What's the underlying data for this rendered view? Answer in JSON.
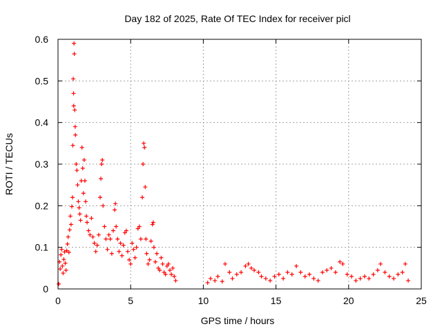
{
  "chart_data": {
    "type": "scatter",
    "title": "Day 182 of 2025, Rate Of TEC Index for receiver picl",
    "xlabel": "GPS time / hours",
    "ylabel": "ROTI / TECUs",
    "xlim": [
      0,
      25
    ],
    "ylim": [
      0,
      0.6
    ],
    "x_ticks": [
      "0",
      "5",
      "10",
      "15",
      "20",
      "25"
    ],
    "y_ticks": [
      "0",
      "0.1",
      "0.2",
      "0.3",
      "0.4",
      "0.5",
      "0.6"
    ],
    "x_tick_values": [
      0,
      5,
      10,
      15,
      20,
      25
    ],
    "y_tick_values": [
      0,
      0.1,
      0.2,
      0.3,
      0.4,
      0.5,
      0.6
    ],
    "grid": true,
    "legend": "none",
    "marker": "+",
    "series_color": "#ff0000",
    "series": [
      {
        "points": [
          [
            0.05,
            0.012
          ],
          [
            0.1,
            0.065
          ],
          [
            0.15,
            0.048
          ],
          [
            0.2,
            0.082
          ],
          [
            0.25,
            0.095
          ],
          [
            0.3,
            0.055
          ],
          [
            0.35,
            0.038
          ],
          [
            0.4,
            0.071
          ],
          [
            0.45,
            0.089
          ],
          [
            0.5,
            0.062
          ],
          [
            0.55,
            0.045
          ],
          [
            0.6,
            0.092
          ],
          [
            0.65,
            0.108
          ],
          [
            0.7,
            0.125
          ],
          [
            0.75,
            0.088
          ],
          [
            0.8,
            0.142
          ],
          [
            0.85,
            0.175
          ],
          [
            0.9,
            0.155
          ],
          [
            0.95,
            0.198
          ],
          [
            1.0,
            0.22
          ],
          [
            1.02,
            0.345
          ],
          [
            1.05,
            0.505
          ],
          [
            1.07,
            0.47
          ],
          [
            1.08,
            0.44
          ],
          [
            1.1,
            0.59
          ],
          [
            1.12,
            0.565
          ],
          [
            1.15,
            0.43
          ],
          [
            1.18,
            0.39
          ],
          [
            1.2,
            0.37
          ],
          [
            1.25,
            0.3
          ],
          [
            1.3,
            0.285
          ],
          [
            1.35,
            0.25
          ],
          [
            1.4,
            0.21
          ],
          [
            1.45,
            0.195
          ],
          [
            1.5,
            0.18
          ],
          [
            1.55,
            0.165
          ],
          [
            1.6,
            0.26
          ],
          [
            1.65,
            0.34
          ],
          [
            1.7,
            0.29
          ],
          [
            1.75,
            0.23
          ],
          [
            1.8,
            0.31
          ],
          [
            1.85,
            0.26
          ],
          [
            1.9,
            0.21
          ],
          [
            1.95,
            0.175
          ],
          [
            2.0,
            0.16
          ],
          [
            2.1,
            0.14
          ],
          [
            2.2,
            0.13
          ],
          [
            2.3,
            0.17
          ],
          [
            2.4,
            0.125
          ],
          [
            2.5,
            0.11
          ],
          [
            2.6,
            0.09
          ],
          [
            2.7,
            0.105
          ],
          [
            2.8,
            0.13
          ],
          [
            2.9,
            0.22
          ],
          [
            2.95,
            0.265
          ],
          [
            3.0,
            0.3
          ],
          [
            3.05,
            0.31
          ],
          [
            3.1,
            0.2
          ],
          [
            3.2,
            0.15
          ],
          [
            3.3,
            0.12
          ],
          [
            3.4,
            0.095
          ],
          [
            3.5,
            0.13
          ],
          [
            3.6,
            0.12
          ],
          [
            3.7,
            0.085
          ],
          [
            3.8,
            0.14
          ],
          [
            3.9,
            0.19
          ],
          [
            3.95,
            0.205
          ],
          [
            4.0,
            0.15
          ],
          [
            4.1,
            0.12
          ],
          [
            4.2,
            0.09
          ],
          [
            4.3,
            0.11
          ],
          [
            4.4,
            0.08
          ],
          [
            4.5,
            0.105
          ],
          [
            4.6,
            0.135
          ],
          [
            4.7,
            0.14
          ],
          [
            4.8,
            0.09
          ],
          [
            4.9,
            0.07
          ],
          [
            5.0,
            0.06
          ],
          [
            5.1,
            0.11
          ],
          [
            5.2,
            0.095
          ],
          [
            5.3,
            0.075
          ],
          [
            5.4,
            0.1
          ],
          [
            5.5,
            0.145
          ],
          [
            5.6,
            0.15
          ],
          [
            5.7,
            0.12
          ],
          [
            5.8,
            0.22
          ],
          [
            5.85,
            0.3
          ],
          [
            5.9,
            0.35
          ],
          [
            5.95,
            0.34
          ],
          [
            6.0,
            0.245
          ],
          [
            6.05,
            0.12
          ],
          [
            6.1,
            0.085
          ],
          [
            6.2,
            0.06
          ],
          [
            6.3,
            0.07
          ],
          [
            6.4,
            0.115
          ],
          [
            6.5,
            0.155
          ],
          [
            6.55,
            0.16
          ],
          [
            6.6,
            0.1
          ],
          [
            6.7,
            0.065
          ],
          [
            6.8,
            0.085
          ],
          [
            6.9,
            0.05
          ],
          [
            7.0,
            0.045
          ],
          [
            7.1,
            0.075
          ],
          [
            7.2,
            0.06
          ],
          [
            7.3,
            0.04
          ],
          [
            7.4,
            0.035
          ],
          [
            7.5,
            0.055
          ],
          [
            7.6,
            0.06
          ],
          [
            7.7,
            0.045
          ],
          [
            7.8,
            0.035
          ],
          [
            7.9,
            0.05
          ],
          [
            8.0,
            0.03
          ],
          [
            8.1,
            0.02
          ],
          [
            10.3,
            0.015
          ],
          [
            10.5,
            0.025
          ],
          [
            10.8,
            0.02
          ],
          [
            11.0,
            0.03
          ],
          [
            11.3,
            0.018
          ],
          [
            11.5,
            0.06
          ],
          [
            11.8,
            0.04
          ],
          [
            12.0,
            0.025
          ],
          [
            12.3,
            0.035
          ],
          [
            12.6,
            0.04
          ],
          [
            12.9,
            0.055
          ],
          [
            13.1,
            0.06
          ],
          [
            13.3,
            0.05
          ],
          [
            13.5,
            0.045
          ],
          [
            13.8,
            0.04
          ],
          [
            14.0,
            0.03
          ],
          [
            14.3,
            0.025
          ],
          [
            14.6,
            0.02
          ],
          [
            14.9,
            0.03
          ],
          [
            15.2,
            0.035
          ],
          [
            15.5,
            0.025
          ],
          [
            15.8,
            0.04
          ],
          [
            16.1,
            0.035
          ],
          [
            16.4,
            0.055
          ],
          [
            16.7,
            0.04
          ],
          [
            17.0,
            0.03
          ],
          [
            17.3,
            0.035
          ],
          [
            17.6,
            0.025
          ],
          [
            17.9,
            0.02
          ],
          [
            18.2,
            0.04
          ],
          [
            18.5,
            0.045
          ],
          [
            18.8,
            0.05
          ],
          [
            19.1,
            0.04
          ],
          [
            19.4,
            0.065
          ],
          [
            19.6,
            0.06
          ],
          [
            19.9,
            0.035
          ],
          [
            20.2,
            0.03
          ],
          [
            20.5,
            0.02
          ],
          [
            20.8,
            0.025
          ],
          [
            21.1,
            0.03
          ],
          [
            21.4,
            0.025
          ],
          [
            21.7,
            0.035
          ],
          [
            22.0,
            0.045
          ],
          [
            22.2,
            0.06
          ],
          [
            22.5,
            0.04
          ],
          [
            22.8,
            0.03
          ],
          [
            23.1,
            0.025
          ],
          [
            23.4,
            0.035
          ],
          [
            23.7,
            0.04
          ],
          [
            23.9,
            0.06
          ],
          [
            24.1,
            0.02
          ]
        ]
      }
    ]
  }
}
